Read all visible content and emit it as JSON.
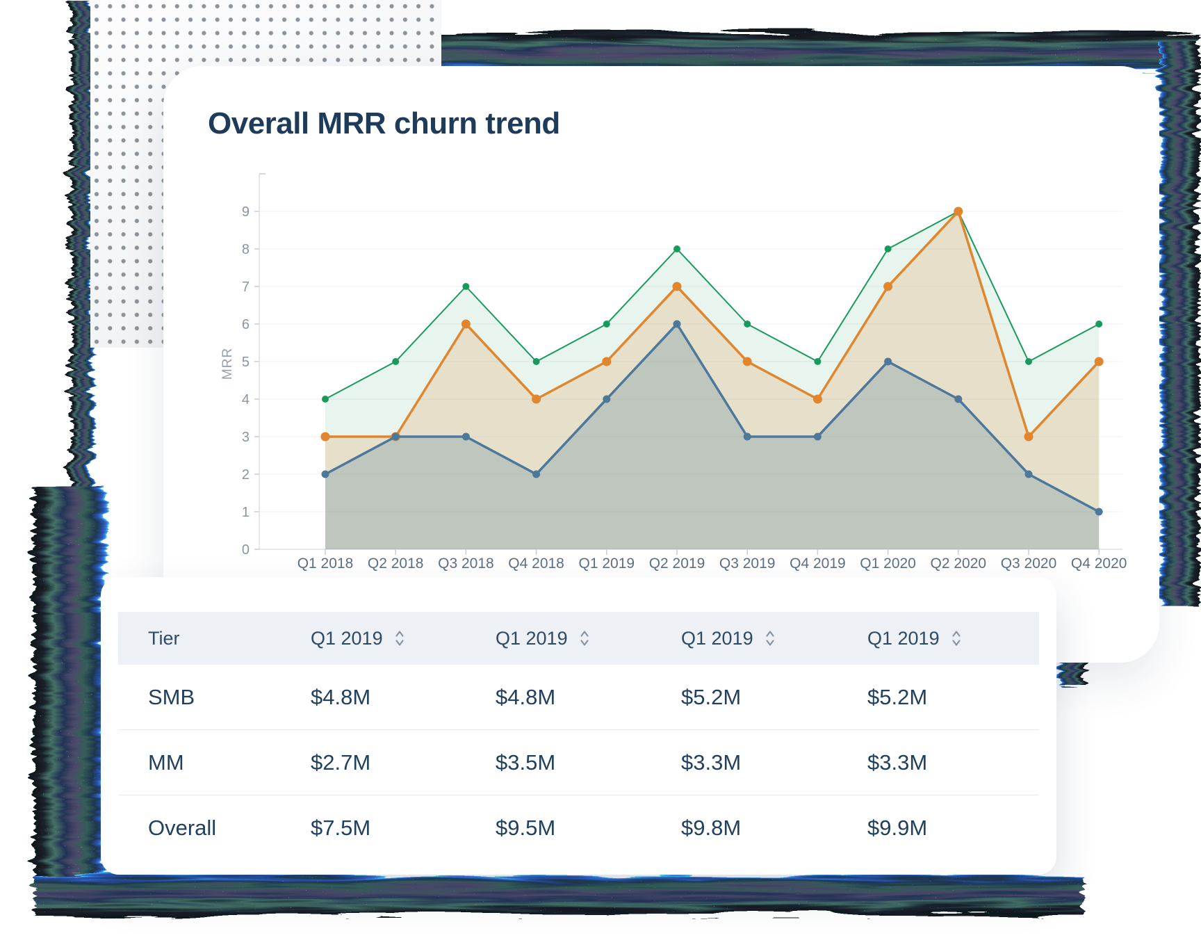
{
  "page": {
    "background": "#ffffff"
  },
  "chart_card": {
    "title": "Overall MRR churn trend"
  },
  "chart_data": {
    "type": "area",
    "title": "Overall MRR churn trend",
    "xlabel": "",
    "ylabel": "MRR",
    "ylim": [
      0,
      9
    ],
    "y_ticks": [
      0,
      1,
      2,
      3,
      4,
      5,
      6,
      7,
      8,
      9
    ],
    "grid": true,
    "legend": false,
    "categories": [
      "Q1 2018",
      "Q2 2018",
      "Q3 2018",
      "Q4 2018",
      "Q1 2019",
      "Q2 2019",
      "Q3 2019",
      "Q4 2019",
      "Q1 2020",
      "Q2 2020",
      "Q3 2020",
      "Q4 2020"
    ],
    "series": [
      {
        "name": "green-series",
        "color": "#199a5d",
        "fill": "rgba(25,154,93,0.10)",
        "values": [
          4,
          5,
          7,
          5,
          6,
          8,
          6,
          5,
          8,
          9,
          5,
          6
        ]
      },
      {
        "name": "orange-series",
        "color": "#e0862f",
        "fill": "rgba(224,134,47,0.18)",
        "values": [
          3,
          3,
          6,
          4,
          5,
          7,
          5,
          4,
          7,
          9,
          3,
          5
        ]
      },
      {
        "name": "blue-series",
        "color": "#4d7899",
        "fill": "rgba(77,120,153,0.25)",
        "values": [
          2,
          3,
          3,
          2,
          4,
          6,
          3,
          3,
          5,
          4,
          2,
          1
        ]
      }
    ]
  },
  "table": {
    "columns": [
      {
        "label": "Tier",
        "sortable": false
      },
      {
        "label": "Q1 2019",
        "sortable": true
      },
      {
        "label": "Q1 2019",
        "sortable": true
      },
      {
        "label": "Q1 2019",
        "sortable": true
      },
      {
        "label": "Q1 2019",
        "sortable": true
      }
    ],
    "rows": [
      {
        "tier": "SMB",
        "values": [
          "$4.8M",
          "$4.8M",
          "$5.2M",
          "$5.2M"
        ]
      },
      {
        "tier": "MM",
        "values": [
          "$2.7M",
          "$3.5M",
          "$3.3M",
          "$3.3M"
        ]
      },
      {
        "tier": "Overall",
        "values": [
          "$7.5M",
          "$9.5M",
          "$9.8M",
          "$9.9M"
        ]
      }
    ]
  },
  "colors": {
    "title_text": "#1e3c59",
    "table_text": "#21405e",
    "header_bg": "#edf0f4",
    "axis_text": "#8a95a1",
    "x_label_text": "#5d7082",
    "grid_line": "#f0f1f2",
    "axis_line": "#dde1e5",
    "noise_teal": "#3b6a5e",
    "noise_navy": "#182a4e",
    "noise_purple": "#454063",
    "noise_cyan_edge": "#3fd9e8"
  }
}
